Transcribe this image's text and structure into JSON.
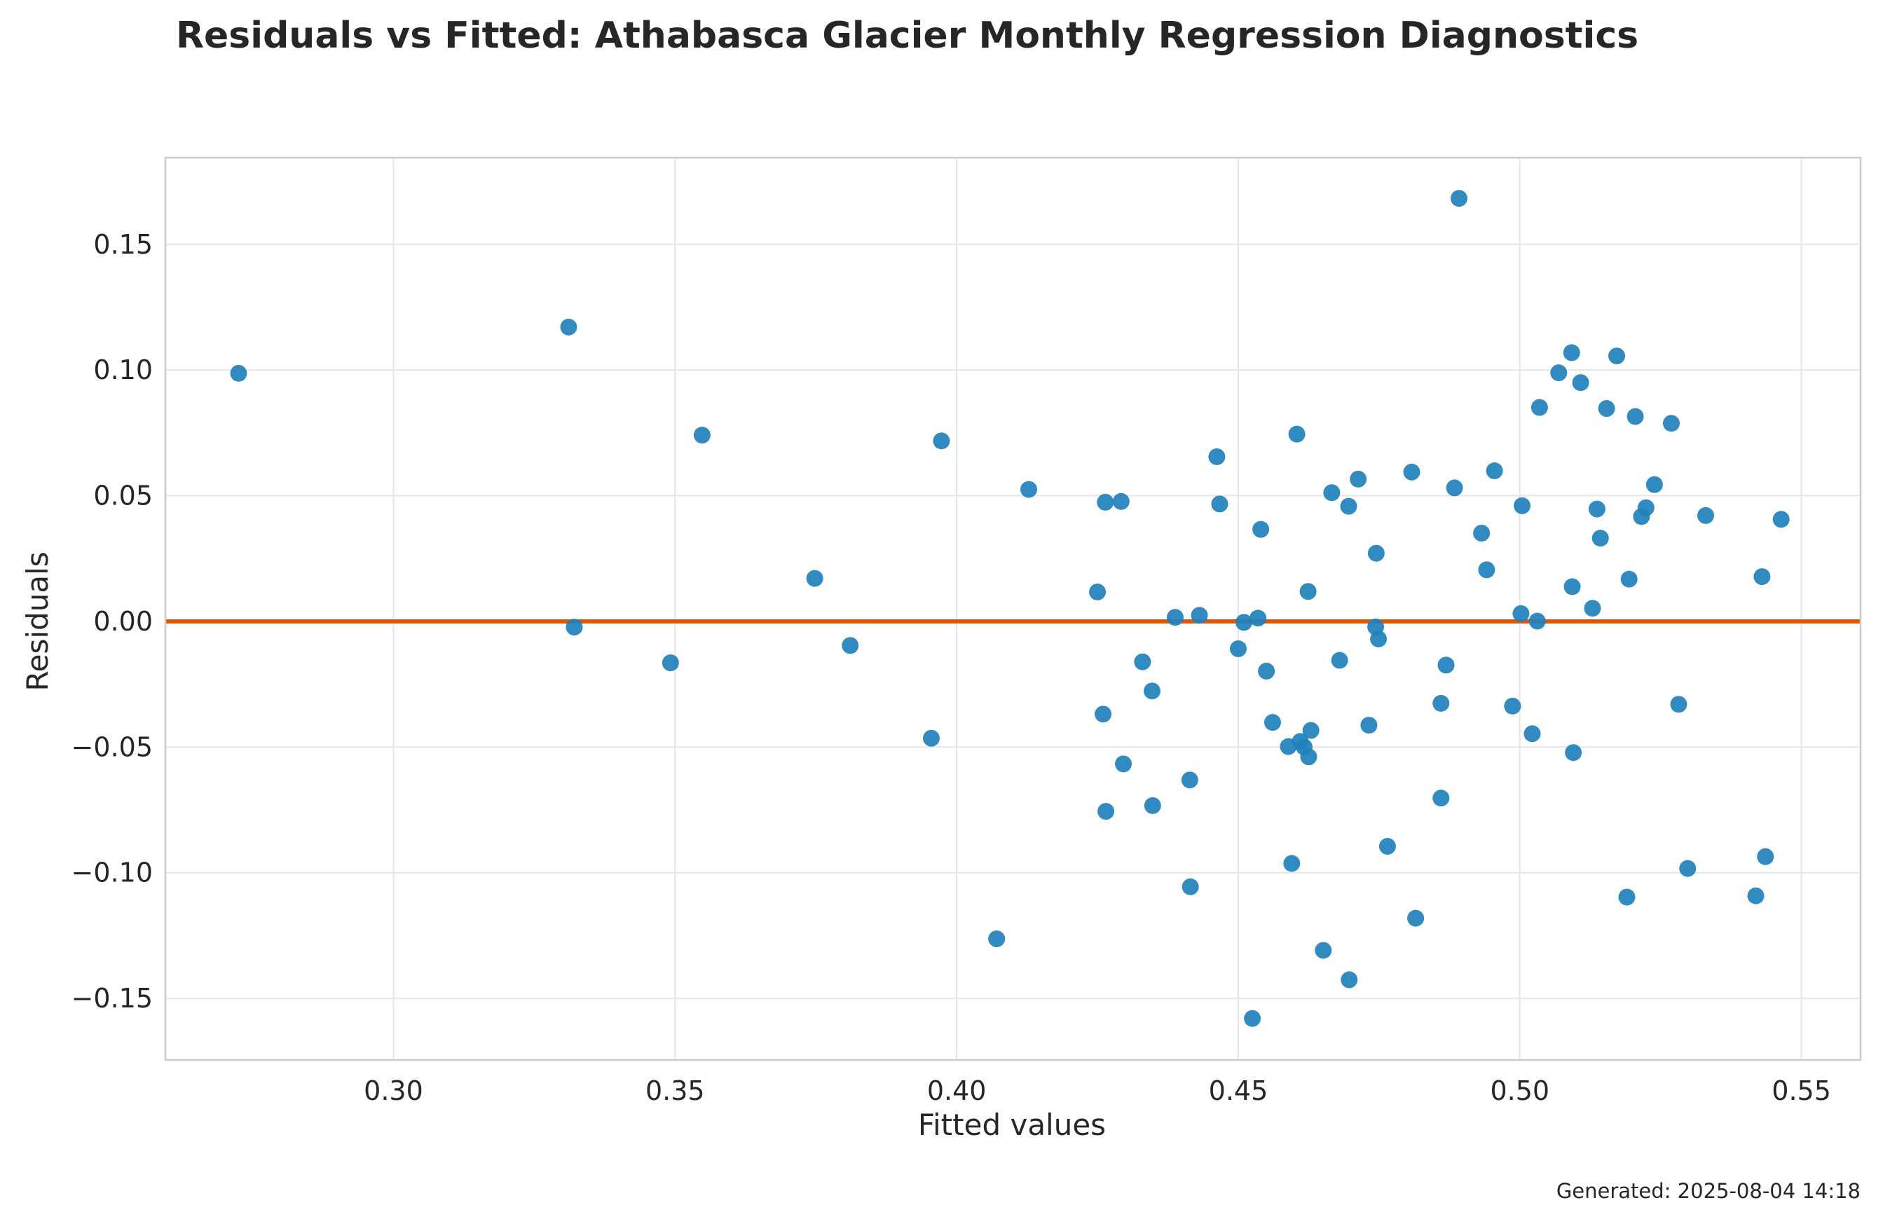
{
  "chart_data": {
    "type": "scatter",
    "title": "Residuals vs Fitted: Athabasca Glacier Monthly Regression Diagnostics",
    "xlabel": "Fitted values",
    "ylabel": "Residuals",
    "xlim": [
      0.2595,
      0.5605
    ],
    "ylim": [
      -0.1745,
      0.1845
    ],
    "xticks": [
      0.3,
      0.35,
      0.4,
      0.45,
      0.5,
      0.55
    ],
    "xtick_labels": [
      "0.30",
      "0.35",
      "0.40",
      "0.45",
      "0.50",
      "0.55"
    ],
    "yticks": [
      -0.15,
      -0.1,
      -0.05,
      0.0,
      0.05,
      0.1,
      0.15
    ],
    "ytick_labels": [
      "−0.15",
      "−0.10",
      "−0.05",
      "0.00",
      "0.05",
      "0.10",
      "0.15"
    ],
    "grid": true,
    "reference_line": {
      "y": 0.0,
      "color": "#d45a0f"
    },
    "point_color": "#1f80bb",
    "points": [
      [
        0.2725,
        0.0987
      ],
      [
        0.3311,
        0.1171
      ],
      [
        0.3321,
        -0.0023
      ],
      [
        0.3492,
        -0.0165
      ],
      [
        0.3548,
        0.0741
      ],
      [
        0.3748,
        0.0171
      ],
      [
        0.3811,
        -0.0096
      ],
      [
        0.3955,
        -0.0465
      ],
      [
        0.3973,
        0.0718
      ],
      [
        0.4071,
        -0.1263
      ],
      [
        0.4128,
        0.0525
      ],
      [
        0.425,
        0.0117
      ],
      [
        0.426,
        -0.0369
      ],
      [
        0.4264,
        0.0474
      ],
      [
        0.4265,
        -0.0756
      ],
      [
        0.4292,
        0.0477
      ],
      [
        0.4296,
        -0.0567
      ],
      [
        0.433,
        -0.0161
      ],
      [
        0.4347,
        -0.0277
      ],
      [
        0.4348,
        -0.0733
      ],
      [
        0.4388,
        0.0016
      ],
      [
        0.4414,
        -0.0631
      ],
      [
        0.4415,
        -0.1056
      ],
      [
        0.4431,
        0.0024
      ],
      [
        0.4462,
        0.0655
      ],
      [
        0.4467,
        0.0467
      ],
      [
        0.45,
        -0.0109
      ],
      [
        0.451,
        -0.0004
      ],
      [
        0.4525,
        -0.158
      ],
      [
        0.4535,
        0.0013
      ],
      [
        0.454,
        0.0366
      ],
      [
        0.455,
        -0.0198
      ],
      [
        0.4561,
        -0.0402
      ],
      [
        0.4589,
        -0.0498
      ],
      [
        0.4595,
        -0.0963
      ],
      [
        0.4604,
        0.0745
      ],
      [
        0.461,
        -0.0478
      ],
      [
        0.4617,
        -0.05
      ],
      [
        0.4624,
        0.0119
      ],
      [
        0.4625,
        -0.0539
      ],
      [
        0.4629,
        -0.0434
      ],
      [
        0.4651,
        -0.1309
      ],
      [
        0.4666,
        0.0512
      ],
      [
        0.468,
        -0.0155
      ],
      [
        0.4696,
        0.0458
      ],
      [
        0.4697,
        -0.1426
      ],
      [
        0.4713,
        0.0566
      ],
      [
        0.4732,
        -0.0413
      ],
      [
        0.4744,
        -0.0022
      ],
      [
        0.4745,
        0.0271
      ],
      [
        0.4749,
        -0.007
      ],
      [
        0.4765,
        -0.0895
      ],
      [
        0.4808,
        0.0594
      ],
      [
        0.4815,
        -0.1181
      ],
      [
        0.486,
        -0.0326
      ],
      [
        0.486,
        -0.0703
      ],
      [
        0.4869,
        -0.0174
      ],
      [
        0.4884,
        0.0531
      ],
      [
        0.4892,
        0.1683
      ],
      [
        0.4932,
        0.0351
      ],
      [
        0.4941,
        0.0205
      ],
      [
        0.4955,
        0.0599
      ],
      [
        0.4987,
        -0.0337
      ],
      [
        0.5002,
        0.0031
      ],
      [
        0.5004,
        0.046
      ],
      [
        0.5022,
        -0.0447
      ],
      [
        0.5031,
        0.0001
      ],
      [
        0.5035,
        0.0851
      ],
      [
        0.5069,
        0.0989
      ],
      [
        0.5092,
        0.1069
      ],
      [
        0.5093,
        0.0138
      ],
      [
        0.5095,
        -0.0522
      ],
      [
        0.5108,
        0.095
      ],
      [
        0.5129,
        0.0052
      ],
      [
        0.5137,
        0.0447
      ],
      [
        0.5143,
        0.0331
      ],
      [
        0.5154,
        0.0847
      ],
      [
        0.5172,
        0.1056
      ],
      [
        0.519,
        -0.1097
      ],
      [
        0.5194,
        0.0168
      ],
      [
        0.5205,
        0.0815
      ],
      [
        0.5216,
        0.0417
      ],
      [
        0.5224,
        0.0452
      ],
      [
        0.5239,
        0.0544
      ],
      [
        0.5269,
        0.0788
      ],
      [
        0.5282,
        -0.033
      ],
      [
        0.5298,
        -0.0983
      ],
      [
        0.533,
        0.0421
      ],
      [
        0.5419,
        -0.1092
      ],
      [
        0.543,
        0.0178
      ],
      [
        0.5436,
        -0.0936
      ],
      [
        0.5464,
        0.0406
      ]
    ]
  },
  "footer": {
    "generated": "Generated: 2025-08-04 14:18"
  }
}
